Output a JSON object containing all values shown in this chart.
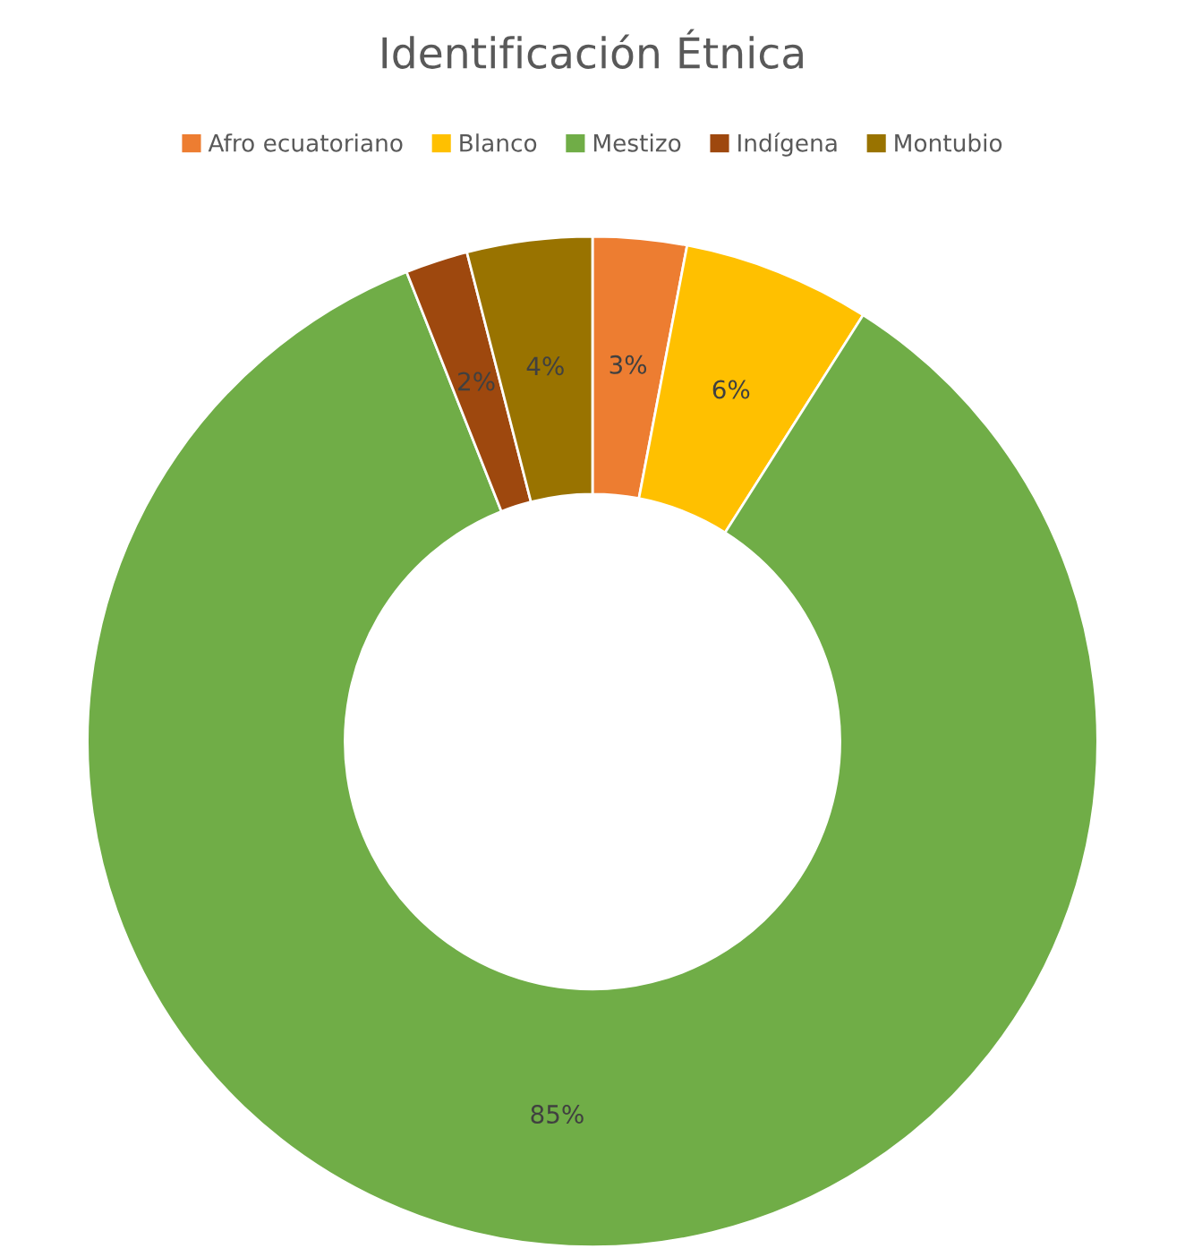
{
  "chart_data": {
    "type": "donut",
    "title": "Identificación Étnica",
    "categories": [
      "Afro ecuatoriano",
      "Blanco",
      "Mestizo",
      "Indígena",
      "Montubio"
    ],
    "values": [
      3,
      6,
      85,
      2,
      4
    ],
    "colors": [
      "#ed7d31",
      "#ffc000",
      "#70ad47",
      "#9e480e",
      "#997300"
    ],
    "value_labels": [
      "3%",
      "6%",
      "85%",
      "2%",
      "4%"
    ],
    "legend": "top"
  }
}
